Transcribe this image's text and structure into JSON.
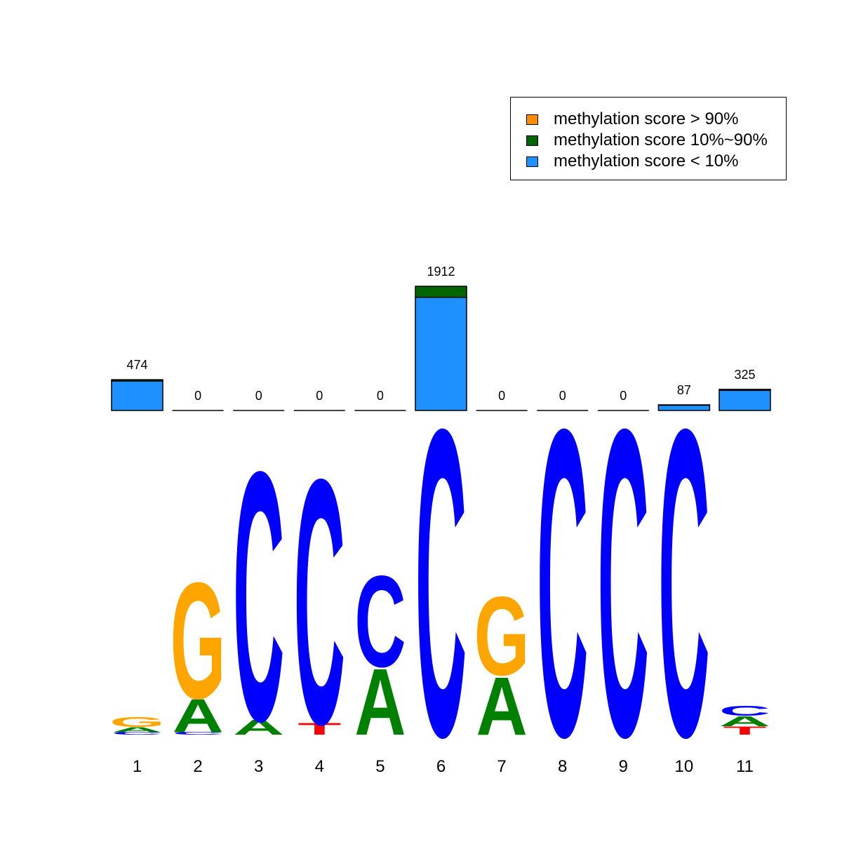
{
  "chart_data": {
    "type": "bar",
    "title": "",
    "categories": [
      "1",
      "2",
      "3",
      "4",
      "5",
      "6",
      "7",
      "8",
      "9",
      "10",
      "11"
    ],
    "bar_totals": [
      "474",
      "0",
      "0",
      "0",
      "0",
      "1912",
      "0",
      "0",
      "0",
      "87",
      "325"
    ],
    "series": [
      {
        "name": "methylation score > 90%",
        "color": "#FF8C00",
        "values": [
          0,
          0,
          0,
          0,
          0,
          0,
          0,
          0,
          0,
          0,
          0
        ]
      },
      {
        "name": "methylation score 10%~90%",
        "color": "#006400",
        "values": [
          20,
          0,
          0,
          0,
          0,
          170,
          0,
          0,
          0,
          5,
          15
        ]
      },
      {
        "name": "methylation score < 10%",
        "color": "#1E90FF",
        "values": [
          454,
          0,
          0,
          0,
          0,
          1742,
          0,
          0,
          0,
          82,
          310
        ]
      }
    ],
    "legend_position": "top-right",
    "sequence_logo": {
      "colors": {
        "A": "#008000",
        "C": "#0000FF",
        "G": "#FFA500",
        "T": "#FF0000"
      },
      "positions": [
        {
          "label": "1",
          "letters": [
            {
              "base": "C",
              "bits": 0.03
            },
            {
              "base": "A",
              "bits": 0.06
            },
            {
              "base": "G",
              "bits": 0.12
            }
          ]
        },
        {
          "label": "2",
          "letters": [
            {
              "base": "C",
              "bits": 0.03
            },
            {
              "base": "A",
              "bits": 0.4
            },
            {
              "base": "G",
              "bits": 1.4
            }
          ]
        },
        {
          "label": "3",
          "letters": [
            {
              "base": "A",
              "bits": 0.18
            },
            {
              "base": "C",
              "bits": 3.0
            }
          ]
        },
        {
          "label": "4",
          "letters": [
            {
              "base": "T",
              "bits": 0.14
            },
            {
              "base": "C",
              "bits": 2.95
            }
          ]
        },
        {
          "label": "5",
          "letters": [
            {
              "base": "A",
              "bits": 0.8
            },
            {
              "base": "C",
              "bits": 1.1
            }
          ]
        },
        {
          "label": "6",
          "letters": [
            {
              "base": "C",
              "bits": 3.7
            }
          ]
        },
        {
          "label": "7",
          "letters": [
            {
              "base": "A",
              "bits": 0.7
            },
            {
              "base": "G",
              "bits": 0.95
            }
          ]
        },
        {
          "label": "8",
          "letters": [
            {
              "base": "C",
              "bits": 3.7
            }
          ]
        },
        {
          "label": "9",
          "letters": [
            {
              "base": "C",
              "bits": 3.7
            }
          ]
        },
        {
          "label": "10",
          "letters": [
            {
              "base": "C",
              "bits": 3.7
            }
          ]
        },
        {
          "label": "11",
          "letters": [
            {
              "base": "T",
              "bits": 0.1
            },
            {
              "base": "A",
              "bits": 0.12
            },
            {
              "base": "C",
              "bits": 0.12
            }
          ]
        }
      ]
    }
  }
}
